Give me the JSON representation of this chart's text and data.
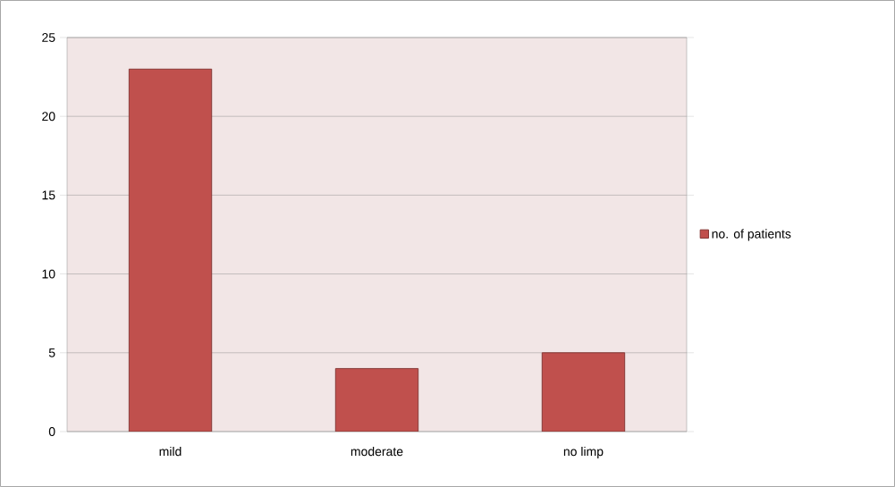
{
  "chart_data": {
    "type": "bar",
    "categories": [
      "mild",
      "moderate",
      "no limp"
    ],
    "series": [
      {
        "name": "no. of patients",
        "color": "#c0504d",
        "values": [
          23,
          4,
          5
        ]
      }
    ],
    "ylim": [
      0,
      25
    ],
    "yticks": [
      0,
      5,
      10,
      15,
      20,
      25
    ],
    "grid": "y",
    "legend": "right"
  }
}
